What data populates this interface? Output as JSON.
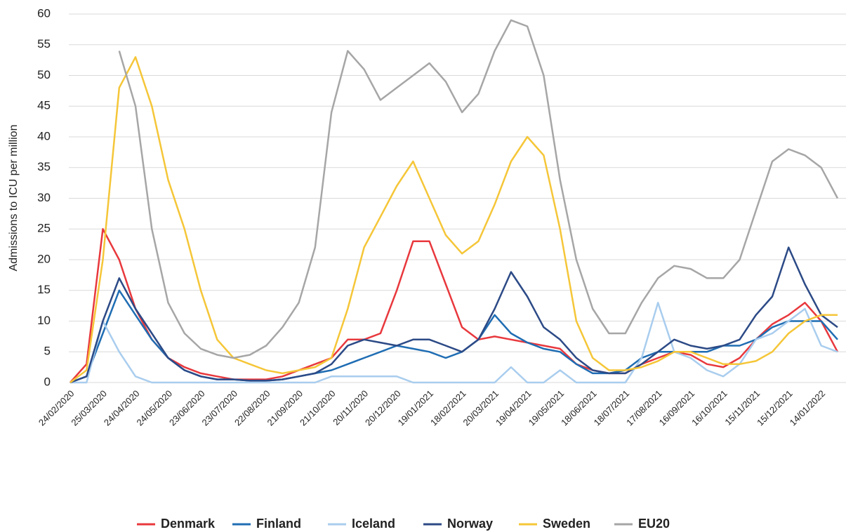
{
  "chart_data": {
    "type": "line",
    "y_label": "Admissions to ICU per million",
    "categories": [
      "24/02/2020",
      null,
      "25/03/2020",
      null,
      "24/04/2020",
      null,
      "24/05/2020",
      null,
      "23/06/2020",
      null,
      "23/07/2020",
      null,
      "22/08/2020",
      null,
      "21/09/2020",
      null,
      "21/10/2020",
      null,
      "20/11/2020",
      null,
      "20/12/2020",
      null,
      "19/01/2021",
      null,
      "18/02/2021",
      null,
      "20/03/2021",
      null,
      "19/04/2021",
      null,
      "19/05/2021",
      null,
      "18/06/2021",
      null,
      "18/07/2021",
      null,
      "17/08/2021",
      null,
      "16/09/2021",
      null,
      "16/10/2021",
      null,
      "15/11/2021",
      null,
      "15/12/2021",
      null,
      "14/01/2022",
      null
    ],
    "series": [
      {
        "name": "Denmark",
        "color": "#e8383d",
        "values": [
          0,
          3,
          25,
          20,
          12,
          7,
          4,
          2.5,
          1.5,
          1,
          0.5,
          0.5,
          0.5,
          1,
          2,
          3,
          4,
          7,
          7,
          8,
          15,
          23,
          23,
          16,
          9,
          7,
          7.5,
          7,
          6.5,
          6,
          5.5,
          3,
          2,
          1.5,
          1.5,
          3,
          4,
          5,
          4.5,
          3,
          2.5,
          4,
          7,
          9.5,
          11,
          13,
          10,
          5
        ]
      },
      {
        "name": "Finland",
        "color": "#1f6db3",
        "values": [
          0,
          1,
          8,
          15,
          11,
          7,
          4,
          2,
          1,
          0.5,
          0.5,
          0.3,
          0.3,
          0.5,
          1,
          1.5,
          2,
          3,
          4,
          5,
          6,
          5.5,
          5,
          4,
          5,
          7,
          11,
          8,
          6.5,
          5.5,
          5,
          3,
          1.5,
          1.5,
          2,
          4,
          5,
          5,
          5,
          5,
          6,
          6,
          7,
          9,
          10,
          10,
          10,
          7
        ]
      },
      {
        "name": "Iceland",
        "color": "#a9cdee",
        "values": [
          0,
          0,
          10,
          5,
          1,
          0,
          0,
          0,
          0,
          0,
          0,
          0,
          0,
          0,
          0,
          0,
          1,
          1,
          1,
          1,
          1,
          0,
          0,
          0,
          0,
          0,
          0,
          2.5,
          0,
          0,
          2,
          0,
          0,
          0,
          0,
          4,
          13,
          5,
          4,
          2,
          1,
          3,
          7,
          8,
          10,
          12,
          6,
          5
        ]
      },
      {
        "name": "Norway",
        "color": "#2c4a86",
        "values": [
          0,
          1,
          10,
          17,
          12,
          8,
          4,
          2,
          1,
          0.5,
          0.5,
          0.3,
          0.3,
          0.5,
          1,
          1.5,
          3,
          6,
          7,
          6.5,
          6,
          7,
          7,
          6,
          5,
          7,
          12,
          18,
          14,
          9,
          7,
          4,
          2,
          1.5,
          1.5,
          3,
          5,
          7,
          6,
          5.5,
          6,
          7,
          11,
          14,
          22,
          16,
          11,
          9
        ]
      },
      {
        "name": "Sweden",
        "color": "#f5c638",
        "values": [
          0,
          2,
          20,
          48,
          53,
          45,
          33,
          25,
          15,
          7,
          4,
          3,
          2,
          1.5,
          2,
          2.5,
          4,
          12,
          22,
          27,
          32,
          36,
          30,
          24,
          21,
          23,
          29,
          36,
          40,
          37,
          25,
          10,
          4,
          2,
          2,
          2.5,
          3.5,
          5,
          5,
          4,
          3,
          3,
          3.5,
          5,
          8,
          10,
          11,
          11
        ]
      },
      {
        "name": "EU20",
        "color": "#a6a6a6",
        "values": [
          null,
          null,
          null,
          54,
          45,
          25,
          13,
          8,
          5.5,
          4.5,
          4,
          4.5,
          6,
          9,
          13,
          22,
          44,
          54,
          51,
          46,
          48,
          50,
          52,
          49,
          44,
          47,
          54,
          59,
          58,
          50,
          33,
          20,
          12,
          8,
          8,
          13,
          17,
          19,
          18.5,
          17,
          17,
          20,
          28,
          36,
          38,
          37,
          35,
          30
        ]
      }
    ],
    "ylim": [
      0,
      60
    ],
    "yticks": [
      0,
      5,
      10,
      15,
      20,
      25,
      30,
      35,
      40,
      45,
      50,
      55,
      60
    ],
    "grid": true,
    "legend": "bottom"
  }
}
